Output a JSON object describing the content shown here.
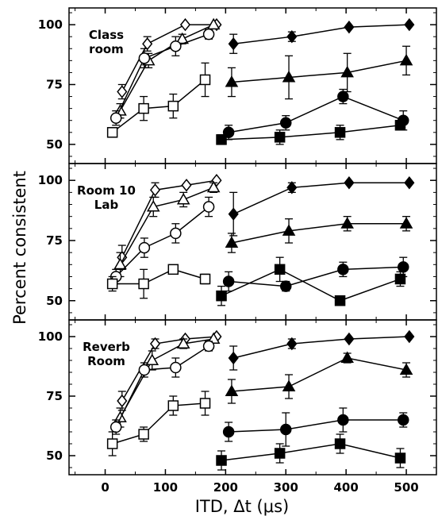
{
  "chart_data": {
    "type": "scatter",
    "xlabel": "ITD, Δt (μs)",
    "ylabel": "Percent consistent",
    "xlim": [
      -60,
      550
    ],
    "ylim": [
      42,
      107
    ],
    "x_ticks": [
      0,
      100,
      200,
      300,
      400,
      500
    ],
    "y_ticks": [
      50,
      75,
      100
    ],
    "grid": false,
    "panels": [
      {
        "label_lines": [
          "Class",
          "room"
        ],
        "series": [
          {
            "marker": "diamond-open",
            "x": [
              28,
              70,
              133,
              185
            ],
            "y": [
              72,
              92,
              100,
              100
            ],
            "err": [
              3,
              3,
              0,
              0
            ]
          },
          {
            "marker": "triangle-open",
            "x": [
              25,
              72,
              128,
              180
            ],
            "y": [
              64,
              85,
              94,
              100
            ],
            "err": [
              3,
              3,
              2,
              0
            ]
          },
          {
            "marker": "circle-open",
            "x": [
              18,
              65,
              117,
              172
            ],
            "y": [
              61,
              86,
              91,
              96
            ],
            "err": [
              3,
              4,
              4,
              2
            ]
          },
          {
            "marker": "square-open",
            "x": [
              12,
              64,
              113,
              166
            ],
            "y": [
              55,
              65,
              66,
              77
            ],
            "err": [
              2,
              5,
              5,
              7
            ]
          },
          {
            "marker": "diamond-filled",
            "x": [
              213,
              310,
              405,
              505
            ],
            "y": [
              92,
              95,
              99,
              100
            ],
            "err": [
              4,
              2,
              0,
              0
            ]
          },
          {
            "marker": "triangle-filled",
            "x": [
              210,
              305,
              402,
              500
            ],
            "y": [
              76,
              78,
              80,
              85
            ],
            "err": [
              6,
              9,
              8,
              6
            ]
          },
          {
            "marker": "circle-filled",
            "x": [
              205,
              300,
              395,
              495
            ],
            "y": [
              55,
              59,
              70,
              60
            ],
            "err": [
              3,
              3,
              3,
              4
            ]
          },
          {
            "marker": "square-filled",
            "x": [
              193,
              290,
              390,
              490
            ],
            "y": [
              52,
              53,
              55,
              58
            ],
            "err": [
              2,
              3,
              3,
              2
            ]
          }
        ]
      },
      {
        "label_lines": [
          "Room 10",
          "Lab"
        ],
        "series": [
          {
            "marker": "diamond-open",
            "x": [
              28,
              83,
              135,
              185
            ],
            "y": [
              68,
              96,
              98,
              100
            ],
            "err": [
              5,
              3,
              0,
              0
            ]
          },
          {
            "marker": "triangle-open",
            "x": [
              25,
              80,
              130,
              180
            ],
            "y": [
              65,
              89,
              92,
              97
            ],
            "err": [
              5,
              4,
              3,
              2
            ]
          },
          {
            "marker": "circle-open",
            "x": [
              18,
              65,
              117,
              172
            ],
            "y": [
              60,
              72,
              78,
              89
            ],
            "err": [
              3,
              4,
              4,
              4
            ]
          },
          {
            "marker": "square-open",
            "x": [
              12,
              64,
              113,
              166
            ],
            "y": [
              57,
              57,
              63,
              59
            ],
            "err": [
              3,
              6,
              0,
              2
            ]
          },
          {
            "marker": "diamond-filled",
            "x": [
              213,
              310,
              405,
              505
            ],
            "y": [
              86,
              97,
              99,
              99
            ],
            "err": [
              9,
              2,
              0,
              0
            ]
          },
          {
            "marker": "triangle-filled",
            "x": [
              210,
              305,
              402,
              500
            ],
            "y": [
              74,
              79,
              82,
              82
            ],
            "err": [
              4,
              5,
              3,
              3
            ]
          },
          {
            "marker": "circle-filled",
            "x": [
              205,
              300,
              395,
              495
            ],
            "y": [
              58,
              56,
              63,
              64
            ],
            "err": [
              4,
              2,
              3,
              4
            ]
          },
          {
            "marker": "square-filled",
            "x": [
              193,
              290,
              390,
              490
            ],
            "y": [
              52,
              63,
              50,
              59
            ],
            "err": [
              4,
              5,
              0,
              3
            ]
          }
        ]
      },
      {
        "label_lines": [
          "Reverb",
          "Room"
        ],
        "series": [
          {
            "marker": "diamond-open",
            "x": [
              28,
              83,
              133,
              185
            ],
            "y": [
              73,
              97,
              99,
              100
            ],
            "err": [
              4,
              2,
              0,
              0
            ]
          },
          {
            "marker": "triangle-open",
            "x": [
              25,
              78,
              130,
              180
            ],
            "y": [
              66,
              90,
              97,
              99
            ],
            "err": [
              4,
              4,
              2,
              0
            ]
          },
          {
            "marker": "circle-open",
            "x": [
              18,
              65,
              117,
              172
            ],
            "y": [
              62,
              86,
              87,
              96
            ],
            "err": [
              3,
              3,
              4,
              2
            ]
          },
          {
            "marker": "square-open",
            "x": [
              12,
              64,
              113,
              166
            ],
            "y": [
              55,
              59,
              71,
              72
            ],
            "err": [
              5,
              3,
              4,
              5
            ]
          },
          {
            "marker": "diamond-filled",
            "x": [
              213,
              310,
              405,
              505
            ],
            "y": [
              91,
              97,
              99,
              100
            ],
            "err": [
              5,
              2,
              0,
              0
            ]
          },
          {
            "marker": "triangle-filled",
            "x": [
              210,
              305,
              402,
              500
            ],
            "y": [
              77,
              79,
              91,
              86
            ],
            "err": [
              5,
              5,
              2,
              3
            ]
          },
          {
            "marker": "circle-filled",
            "x": [
              205,
              300,
              395,
              495
            ],
            "y": [
              60,
              61,
              65,
              65
            ],
            "err": [
              4,
              7,
              5,
              3
            ]
          },
          {
            "marker": "square-filled",
            "x": [
              193,
              290,
              390,
              490
            ],
            "y": [
              48,
              51,
              55,
              49
            ],
            "err": [
              4,
              4,
              4,
              4
            ]
          }
        ]
      }
    ]
  }
}
